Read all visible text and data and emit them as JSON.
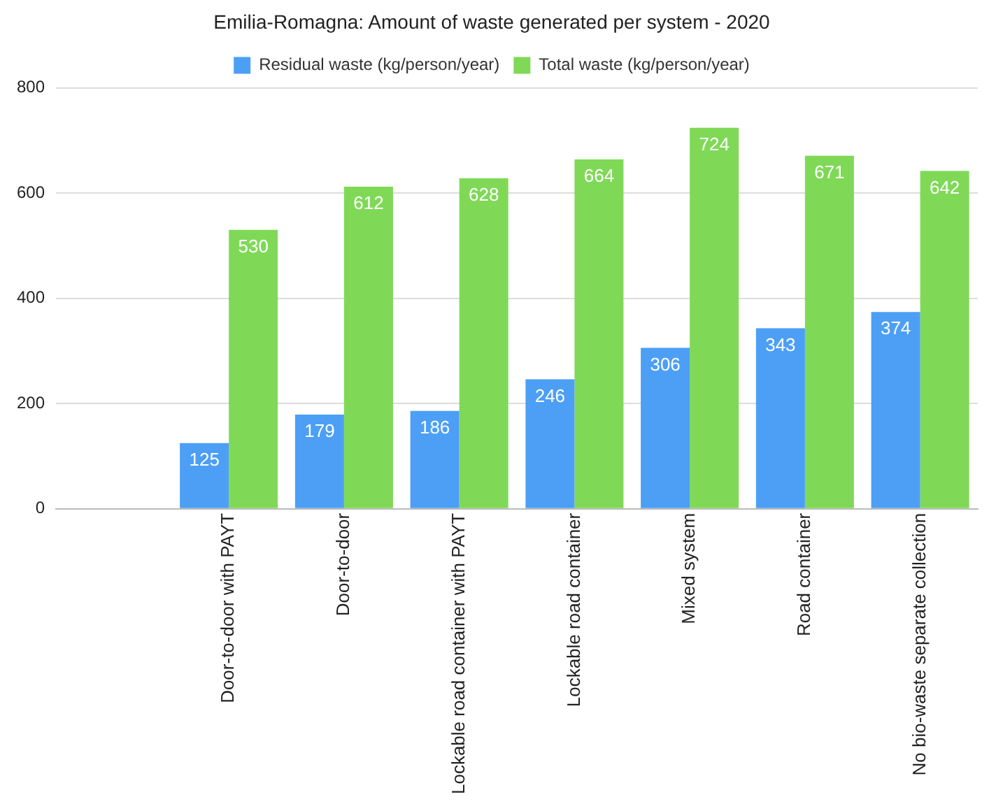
{
  "chart_data": {
    "type": "bar",
    "title": "Emilia-Romagna: Amount of waste generated per system - 2020",
    "categories": [
      null,
      "Door-to-door with PAYT",
      "Door-to-door",
      "Lockable road container with PAYT",
      "Lockable road container",
      "Mixed system",
      "Road container",
      "No bio-waste separate collection"
    ],
    "series": [
      {
        "name": "Residual waste (kg/person/year)",
        "color": "#4c9ff5",
        "values": [
          null,
          125,
          179,
          186,
          246,
          306,
          343,
          374
        ]
      },
      {
        "name": "Total waste (kg/person/year)",
        "color": "#7fd957",
        "values": [
          null,
          530,
          612,
          628,
          664,
          724,
          671,
          642
        ]
      }
    ],
    "ylim": [
      0,
      800
    ],
    "yticks": [
      0,
      200,
      400,
      600,
      800
    ],
    "grid": "y",
    "legend": "top",
    "data_labels": true
  }
}
